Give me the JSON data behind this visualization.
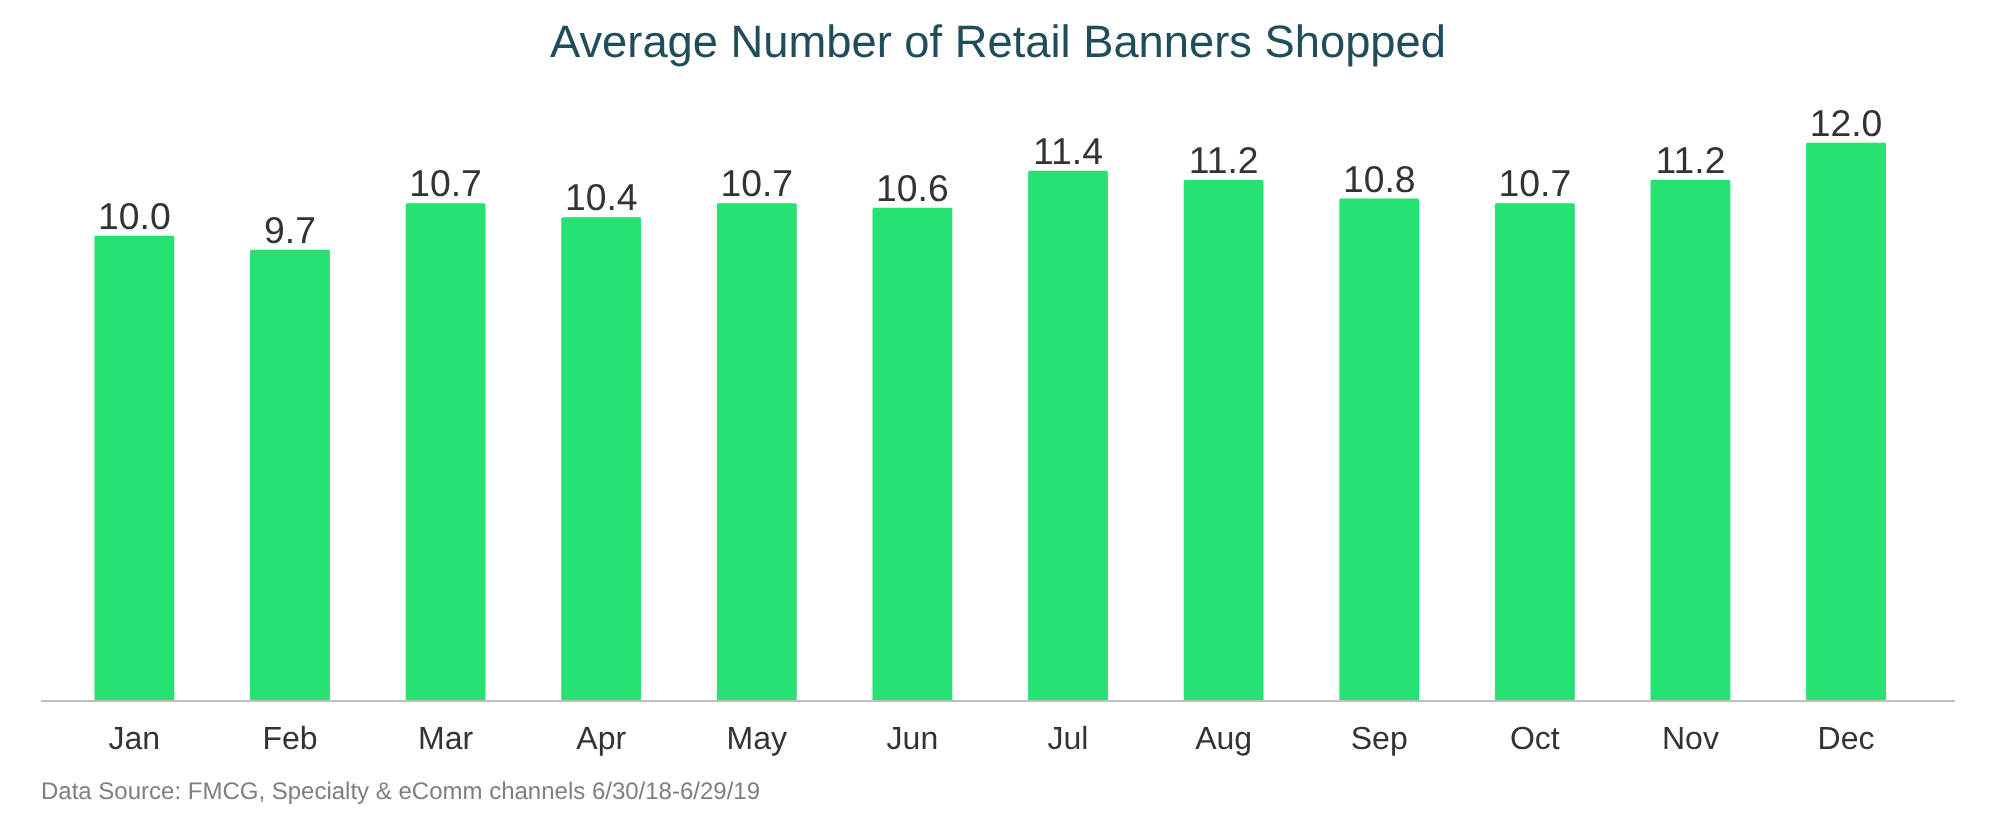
{
  "chart_data": {
    "type": "bar",
    "title": "Average Number of Retail Banners Shopped",
    "categories": [
      "Jan",
      "Feb",
      "Mar",
      "Apr",
      "May",
      "Jun",
      "Jul",
      "Aug",
      "Sep",
      "Oct",
      "Nov",
      "Dec"
    ],
    "values": [
      10.0,
      9.7,
      10.7,
      10.4,
      10.7,
      10.6,
      11.4,
      11.2,
      10.8,
      10.7,
      11.2,
      12.0
    ],
    "value_labels": [
      "10.0",
      "9.7",
      "10.7",
      "10.4",
      "10.7",
      "10.6",
      "11.4",
      "11.2",
      "10.8",
      "10.7",
      "11.2",
      "12.0"
    ],
    "color": "#26e272",
    "grid": false,
    "annotations": [
      "Data Source: FMCG, Specialty & eComm channels 6/30/18-6/29/19"
    ]
  }
}
